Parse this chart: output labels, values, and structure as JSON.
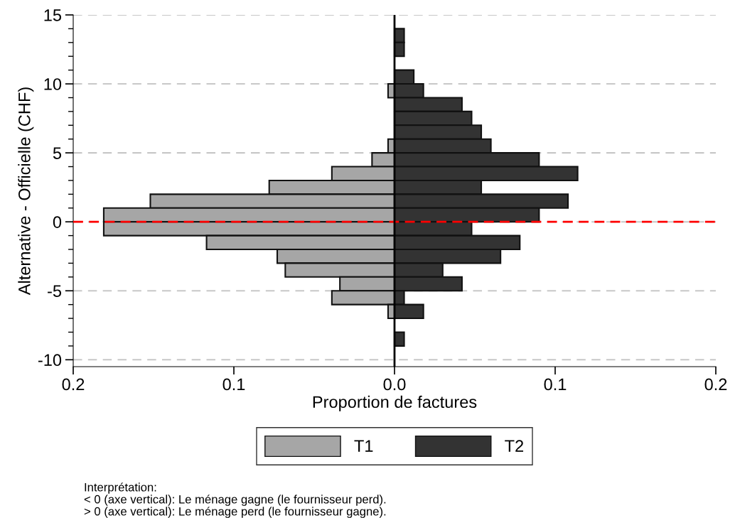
{
  "chart_data": {
    "type": "bar",
    "orientation": "horizontal",
    "stacked": true,
    "x": [
      13.5,
      12.5,
      11.5,
      10.5,
      9.5,
      8.5,
      7.5,
      6.5,
      5.5,
      4.5,
      3.5,
      2.5,
      1.5,
      0.5,
      -0.5,
      -1.5,
      -2.5,
      -3.5,
      -4.5,
      -5.5,
      -6.5,
      -7.5,
      -8.5
    ],
    "series": [
      {
        "name": "T1",
        "color": "#a6a6a6",
        "values": [
          null,
          null,
          null,
          null,
          -0.004,
          null,
          null,
          null,
          -0.004,
          -0.014,
          -0.039,
          -0.078,
          -0.152,
          -0.181,
          -0.181,
          -0.117,
          -0.073,
          -0.068,
          -0.034,
          -0.039,
          -0.004,
          null,
          null
        ]
      },
      {
        "name": "T2",
        "color": "#333333",
        "values": [
          0.006,
          0.006,
          null,
          0.012,
          0.018,
          0.042,
          0.048,
          0.054,
          0.06,
          0.09,
          0.114,
          0.054,
          0.108,
          0.09,
          0.048,
          0.078,
          0.066,
          0.03,
          0.042,
          0.006,
          0.018,
          null,
          0.006
        ]
      }
    ],
    "xlabel": "Proportion de factures",
    "ylabel": "Alternative - Officielle (CHF)",
    "xlim": [
      -0.2,
      0.2
    ],
    "xticks": [
      {
        "value": -0.2,
        "label": "0.2"
      },
      {
        "value": -0.1,
        "label": "0.1"
      },
      {
        "value": 0,
        "label": "0.0"
      },
      0.1,
      0.2
    ],
    "ylim": [
      -10.5,
      15
    ],
    "yticks": [
      -10,
      -5,
      0,
      5,
      10,
      15
    ],
    "grid": "y",
    "legend": "bottom",
    "ref_lines": [
      {
        "axis": "y",
        "value": 0,
        "color": "#ff0000",
        "line_style": "dashed"
      },
      {
        "axis": "x",
        "value": 0,
        "color": "#000000",
        "line_style": "solid"
      }
    ],
    "annotations": [
      "Interprétation:",
      "< 0 (axe vertical): Le ménage gagne (le fournisseur perd).",
      "> 0 (axe vertical): Le ménage perd (le fournisseur gagne)."
    ]
  }
}
